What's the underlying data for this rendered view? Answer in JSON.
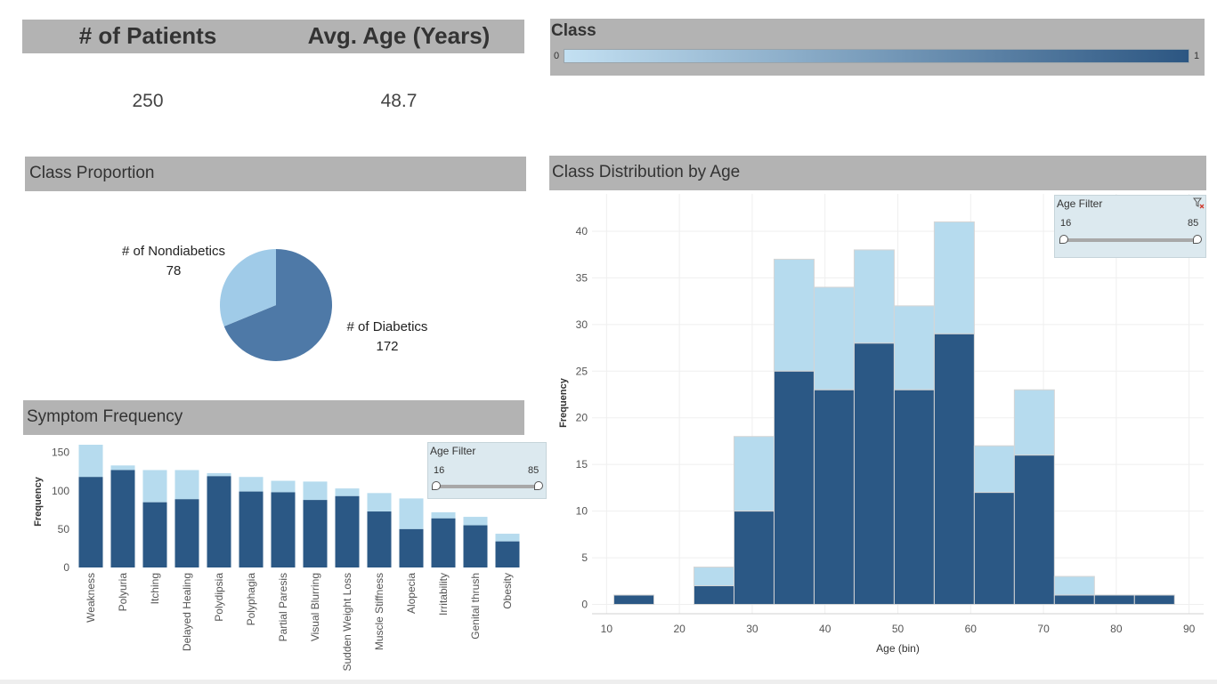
{
  "kpis": {
    "patients_label": "# of Patients",
    "patients_value": "250",
    "age_label": "Avg. Age (Years)",
    "age_value": "48.7"
  },
  "class_legend": {
    "title": "Class",
    "min_label": "0",
    "max_label": "1",
    "color_low": "#c3e0f2",
    "color_high": "#2c5682"
  },
  "sections": {
    "class_proportion": "Class Proportion",
    "symptom_frequency": "Symptom Frequency",
    "class_distribution": "Class Distribution by Age"
  },
  "pie": {
    "nondiabetic_label": "# of Nondiabetics",
    "nondiabetic_value": "78",
    "diabetic_label": "# of Diabetics",
    "diabetic_value": "172"
  },
  "age_filter": {
    "title": "Age Filter",
    "min": "16",
    "max": "85",
    "clear_icon": "filter-clear-icon"
  },
  "colors": {
    "dark": "#2b5885",
    "light": "#b6dbee",
    "pie_dark": "#4e79a7",
    "pie_light": "#a0cbe8",
    "header_gray": "#b3b3b3",
    "filter_bg": "#dce9ef"
  },
  "chart_data": [
    {
      "type": "pie",
      "categories": [
        "# of Diabetics",
        "# of Nondiabetics"
      ],
      "values": [
        172,
        78
      ]
    },
    {
      "type": "bar",
      "stacked": true,
      "title": "Symptom Frequency",
      "xlabel": "",
      "ylabel": "Frequency",
      "ylim": [
        0,
        160
      ],
      "yticks": [
        0,
        50,
        100,
        150
      ],
      "categories": [
        "Weakness",
        "Polyuria",
        "Itching",
        "Delayed Healing",
        "Polydipsia",
        "Polyphagia",
        "Partial Paresis",
        "Visual Blurring",
        "Sudden Weight Loss",
        "Muscle Stiffness",
        "Alopecia",
        "Irritability",
        "Genital thrush",
        "Obesity"
      ],
      "series": [
        {
          "values": [
            118,
            127,
            85,
            89,
            119,
            99,
            98,
            88,
            93,
            73,
            50,
            64,
            55,
            34
          ]
        },
        {
          "values": [
            42,
            6,
            42,
            38,
            4,
            19,
            15,
            24,
            10,
            24,
            40,
            8,
            11,
            10
          ]
        }
      ],
      "grid": false
    },
    {
      "type": "bar",
      "stacked": true,
      "title": "Class Distribution by Age",
      "xlabel": "Age (bin)",
      "ylabel": "Frequency",
      "xlim": [
        8,
        92
      ],
      "ylim": [
        -1,
        44
      ],
      "xticks": [
        10,
        20,
        30,
        40,
        50,
        60,
        70,
        80,
        90
      ],
      "yticks": [
        0,
        5,
        10,
        15,
        20,
        25,
        30,
        35,
        40
      ],
      "bins": [
        {
          "x0": 11,
          "x1": 16.5
        },
        {
          "x0": 22,
          "x1": 27.5
        },
        {
          "x0": 27.5,
          "x1": 33
        },
        {
          "x0": 33,
          "x1": 38.5
        },
        {
          "x0": 38.5,
          "x1": 44
        },
        {
          "x0": 44,
          "x1": 49.5
        },
        {
          "x0": 49.5,
          "x1": 55
        },
        {
          "x0": 55,
          "x1": 60.5
        },
        {
          "x0": 60.5,
          "x1": 66
        },
        {
          "x0": 66,
          "x1": 71.5
        },
        {
          "x0": 71.5,
          "x1": 77
        },
        {
          "x0": 77,
          "x1": 82.5
        },
        {
          "x0": 82.5,
          "x1": 88
        }
      ],
      "series": [
        {
          "values": [
            1,
            2,
            10,
            25,
            23,
            28,
            23,
            29,
            12,
            16,
            1,
            1,
            1
          ]
        },
        {
          "values": [
            0,
            2,
            8,
            12,
            11,
            10,
            9,
            12,
            5,
            7,
            2,
            0,
            0
          ]
        }
      ],
      "grid": true
    }
  ]
}
